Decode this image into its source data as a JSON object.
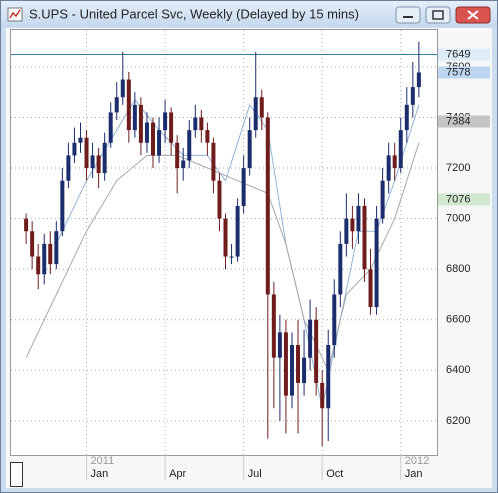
{
  "window_title": "S.UPS - United Parcel Svc, Weekly (Delayed by 15 mins)",
  "chart_data": {
    "type": "candlestick",
    "open": [
      7000,
      6950,
      6850,
      6780,
      6900,
      6820,
      6950,
      7150,
      7250,
      7300,
      7320,
      7200,
      7250,
      7180,
      7300,
      7420,
      7480,
      7550,
      7350,
      7450,
      7300,
      7380,
      7250,
      7350,
      7420,
      7300,
      7200,
      7230,
      7350,
      7400,
      7350,
      7300,
      7150,
      7000,
      6850,
      6850,
      7050,
      7200,
      7350,
      7480,
      7400,
      6700,
      6450,
      6550,
      6300,
      6500,
      6350,
      6450,
      6600,
      6350,
      6250,
      6500,
      6700,
      6900,
      7000,
      6950,
      7050,
      6800,
      6650,
      7000,
      7150,
      7250,
      7200,
      7350,
      7450,
      7520
    ],
    "high": [
      7020,
      6990,
      6900,
      6940,
      6950,
      6990,
      7200,
      7300,
      7360,
      7380,
      7350,
      7300,
      7280,
      7340,
      7460,
      7540,
      7660,
      7580,
      7500,
      7480,
      7420,
      7400,
      7400,
      7470,
      7440,
      7330,
      7280,
      7390,
      7450,
      7430,
      7380,
      7320,
      7180,
      7020,
      6900,
      7080,
      7250,
      7400,
      7660,
      7510,
      7420,
      6750,
      6620,
      6600,
      6550,
      6600,
      6560,
      6680,
      6650,
      6400,
      6560,
      6760,
      6950,
      7100,
      7050,
      7100,
      7080,
      6880,
      7050,
      7200,
      7300,
      7300,
      7400,
      7520,
      7620,
      7700
    ],
    "low": [
      6900,
      6800,
      6720,
      6740,
      6780,
      6800,
      6930,
      7120,
      7220,
      7260,
      7150,
      7160,
      7120,
      7150,
      7280,
      7390,
      7450,
      7300,
      7320,
      7250,
      7260,
      7200,
      7220,
      7300,
      7250,
      7100,
      7150,
      7200,
      7320,
      7300,
      7250,
      7100,
      6950,
      6800,
      6820,
      6830,
      7020,
      7170,
      7320,
      7350,
      6130,
      6250,
      6200,
      6150,
      6250,
      6150,
      6300,
      6400,
      6300,
      6100,
      6120,
      6450,
      6650,
      6850,
      6880,
      6900,
      6750,
      6620,
      6620,
      6980,
      7100,
      7150,
      7180,
      7300,
      7400,
      7480
    ],
    "close": [
      6950,
      6850,
      6780,
      6900,
      6820,
      6950,
      7150,
      7250,
      7300,
      7320,
      7200,
      7250,
      7180,
      7300,
      7420,
      7480,
      7550,
      7350,
      7450,
      7300,
      7380,
      7250,
      7350,
      7420,
      7300,
      7200,
      7230,
      7350,
      7400,
      7350,
      7300,
      7150,
      7000,
      6850,
      6850,
      7050,
      7200,
      7350,
      7480,
      7400,
      6700,
      6450,
      6550,
      6300,
      6500,
      6350,
      6450,
      6600,
      6350,
      6250,
      6500,
      6700,
      6900,
      7000,
      6950,
      7050,
      6800,
      6650,
      7000,
      7150,
      7250,
      7200,
      7350,
      7450,
      7520,
      7578
    ],
    "up_color": "#1c2d6e",
    "down_color": "#6e1c1c",
    "overlays": [
      {
        "color": "#8fb4d9",
        "x": [
          5,
          10,
          15,
          18,
          22,
          26,
          30,
          33,
          37,
          40,
          43,
          46,
          49,
          52,
          55,
          58,
          61,
          65
        ],
        "values": [
          6900,
          7150,
          7350,
          7470,
          7350,
          7250,
          7250,
          7150,
          7450,
          7350,
          6900,
          6600,
          6250,
          6600,
          6950,
          6950,
          7150,
          7450
        ]
      },
      {
        "color": "#a8a8a8",
        "x": [
          0,
          5,
          10,
          15,
          20,
          25,
          30,
          35,
          40,
          43,
          46,
          50,
          53,
          57,
          61,
          65
        ],
        "values": [
          6450,
          6700,
          6950,
          7150,
          7250,
          7250,
          7200,
          7150,
          7100,
          6900,
          6600,
          6400,
          6700,
          6800,
          7000,
          7300
        ]
      }
    ],
    "ylim": [
      6065,
      7746
    ],
    "yticks": [
      6200,
      6400,
      6600,
      6800,
      7000,
      7200,
      7400,
      7600
    ],
    "xlim": [
      -2.5,
      68
    ],
    "xticks": [
      {
        "value": 10,
        "label": "Jan"
      },
      {
        "value": 23,
        "label": "Apr"
      },
      {
        "value": 36,
        "label": "Jul"
      },
      {
        "value": 49,
        "label": "Oct"
      },
      {
        "value": 62,
        "label": "Jan"
      }
    ],
    "year_ticks": [
      {
        "value": 10,
        "label": "2011"
      },
      {
        "value": 62,
        "label": "2012"
      }
    ],
    "price_markers": [
      {
        "value": 7649,
        "color": "#dcecf9"
      },
      {
        "value": 7578,
        "color": "#bcd6ef"
      },
      {
        "value": 7384,
        "color": "#c4c4c4"
      },
      {
        "value": 7076,
        "color": "#cfe8cf"
      }
    ],
    "line_color": "#2f7fa0",
    "grid": true
  }
}
